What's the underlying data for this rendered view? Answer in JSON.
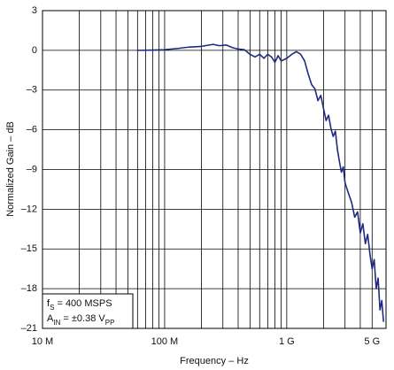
{
  "chart_data": {
    "type": "line",
    "xlabel": "Frequency – Hz",
    "ylabel": "Normalized Gain – dB",
    "xscale": "log",
    "xlim": [
      10000000,
      6500000000
    ],
    "ylim": [
      -21,
      3
    ],
    "xticks": [
      {
        "value": 10000000,
        "label": "10 M"
      },
      {
        "value": 100000000,
        "label": "100 M"
      },
      {
        "value": 1000000000,
        "label": "1 G"
      },
      {
        "value": 5000000000,
        "label": "5 G"
      }
    ],
    "x_minor_ticks": [
      20000000,
      30000000,
      40000000,
      50000000,
      60000000,
      70000000,
      80000000,
      90000000,
      200000000,
      300000000,
      400000000,
      500000000,
      600000000,
      700000000,
      800000000,
      900000000,
      2000000000,
      3000000000,
      4000000000
    ],
    "yticks": [
      {
        "value": -21,
        "label": "–21"
      },
      {
        "value": -18,
        "label": "–18"
      },
      {
        "value": -15,
        "label": "–15"
      },
      {
        "value": -12,
        "label": "–12"
      },
      {
        "value": -9,
        "label": "–9"
      },
      {
        "value": -6,
        "label": "–6"
      },
      {
        "value": -3,
        "label": "–3"
      },
      0,
      3
    ],
    "grid": true,
    "annotation": [
      [
        "f",
        "S",
        " = 400 MSPS"
      ],
      [
        "A",
        "IN",
        " = ±0.38 V",
        "PP"
      ]
    ],
    "series": [
      {
        "color": "#1f2a80",
        "x": [
          60000000,
          80000000,
          100000000,
          130000000,
          160000000,
          200000000,
          250000000,
          280000000,
          320000000,
          360000000,
          400000000,
          450000000,
          500000000,
          550000000,
          600000000,
          650000000,
          700000000,
          750000000,
          800000000,
          850000000,
          900000000,
          1000000000,
          1100000000,
          1200000000,
          1300000000,
          1400000000,
          1500000000,
          1600000000,
          1700000000,
          1800000000,
          1900000000,
          2000000000,
          2100000000,
          2200000000,
          2300000000,
          2400000000,
          2500000000,
          2600000000,
          2700000000,
          2800000000,
          2900000000,
          3000000000,
          3200000000,
          3400000000,
          3600000000,
          3800000000,
          4000000000,
          4200000000,
          4400000000,
          4600000000,
          4800000000,
          5000000000,
          5200000000,
          5400000000,
          5600000000,
          5800000000,
          6000000000,
          6200000000
        ],
        "values": [
          0,
          0.02,
          0.05,
          0.15,
          0.25,
          0.3,
          0.45,
          0.35,
          0.4,
          0.2,
          0.1,
          0.05,
          -0.3,
          -0.5,
          -0.3,
          -0.6,
          -0.3,
          -0.5,
          -0.9,
          -0.4,
          -0.8,
          -0.6,
          -0.3,
          -0.1,
          -0.3,
          -0.8,
          -1.8,
          -2.6,
          -2.9,
          -3.8,
          -3.4,
          -4.4,
          -5.3,
          -4.9,
          -5.9,
          -6.5,
          -6.1,
          -7.5,
          -8.4,
          -9.2,
          -8.8,
          -10.0,
          -10.8,
          -11.5,
          -12.6,
          -12.2,
          -13.8,
          -13.1,
          -14.6,
          -13.9,
          -15.4,
          -16.5,
          -15.8,
          -18.0,
          -17.2,
          -19.6,
          -18.9,
          -20.5
        ]
      }
    ]
  }
}
